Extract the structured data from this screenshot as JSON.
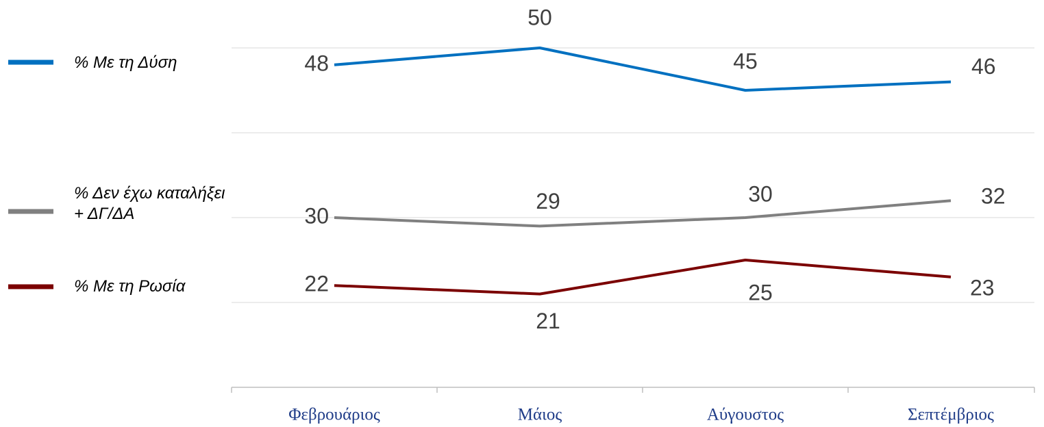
{
  "chart_data": {
    "type": "line",
    "categories": [
      "Φεβρουάριος",
      "Μάιος",
      "Αύγουστος",
      "Σεπτέμβριος"
    ],
    "series": [
      {
        "name": "% Με τη Δύση",
        "color": "#0070c0",
        "values": [
          48,
          50,
          45,
          46
        ]
      },
      {
        "name": "% Δεν έχω καταλήξει\n + ΔΓ/ΔΑ",
        "color": "#808080",
        "values": [
          30,
          29,
          30,
          32
        ]
      },
      {
        "name": "% Με τη Ρωσία",
        "color": "#7b0000",
        "values": [
          22,
          21,
          25,
          23
        ]
      }
    ],
    "ylim": [
      10,
      50
    ],
    "yticks": [
      10,
      20,
      30,
      40,
      50
    ],
    "grid": true,
    "legend": "left"
  }
}
